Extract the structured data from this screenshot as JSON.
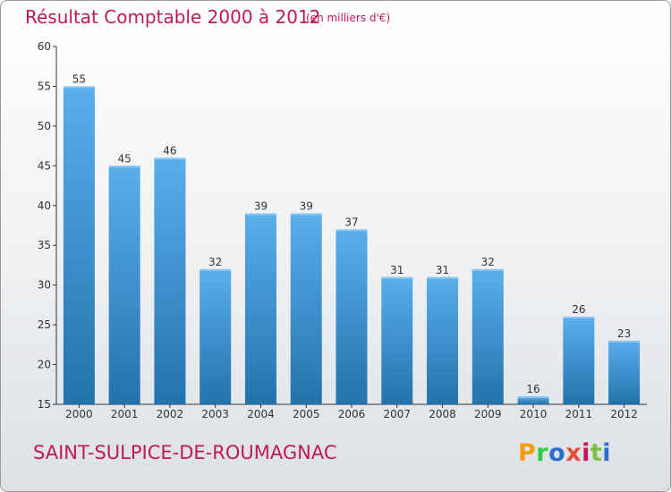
{
  "header": {
    "title": "Résultat Comptable 2000 à 2012",
    "subtitle": "(en milliers d'€)"
  },
  "footer": {
    "commune": "SAINT-SULPICE-DE-ROUMAGNAC",
    "logo_text": "Proxiti"
  },
  "colors": {
    "accent": "#c2185b",
    "bar_light": "#5aaeea",
    "bar_dark": "#2372ad",
    "logo": [
      "#f39c12",
      "#2ecc40",
      "#2a6fc9",
      "#e74c3c",
      "#c2185b",
      "#7ac143",
      "#2a6fc9"
    ]
  },
  "chart_data": {
    "type": "bar",
    "title": "Résultat Comptable 2000 à 2012",
    "subtitle": "(en milliers d'€)",
    "xlabel": "",
    "ylabel": "",
    "categories": [
      "2000",
      "2001",
      "2002",
      "2003",
      "2004",
      "2005",
      "2006",
      "2007",
      "2008",
      "2009",
      "2010",
      "2011",
      "2012"
    ],
    "values": [
      55,
      45,
      46,
      32,
      39,
      39,
      37,
      31,
      31,
      32,
      16,
      26,
      23
    ],
    "value_labels": [
      "55",
      "45",
      "46",
      "32",
      "39",
      "39",
      "37",
      "31",
      "31",
      "32",
      "16",
      "26",
      "23"
    ],
    "ylim": [
      15,
      60
    ],
    "yticks": [
      15,
      20,
      25,
      30,
      35,
      40,
      45,
      50,
      55,
      60
    ],
    "ytick_labels": [
      "15",
      "20",
      "25",
      "30",
      "35",
      "40",
      "45",
      "50",
      "55",
      "60"
    ],
    "grid": false,
    "legend": "none"
  }
}
